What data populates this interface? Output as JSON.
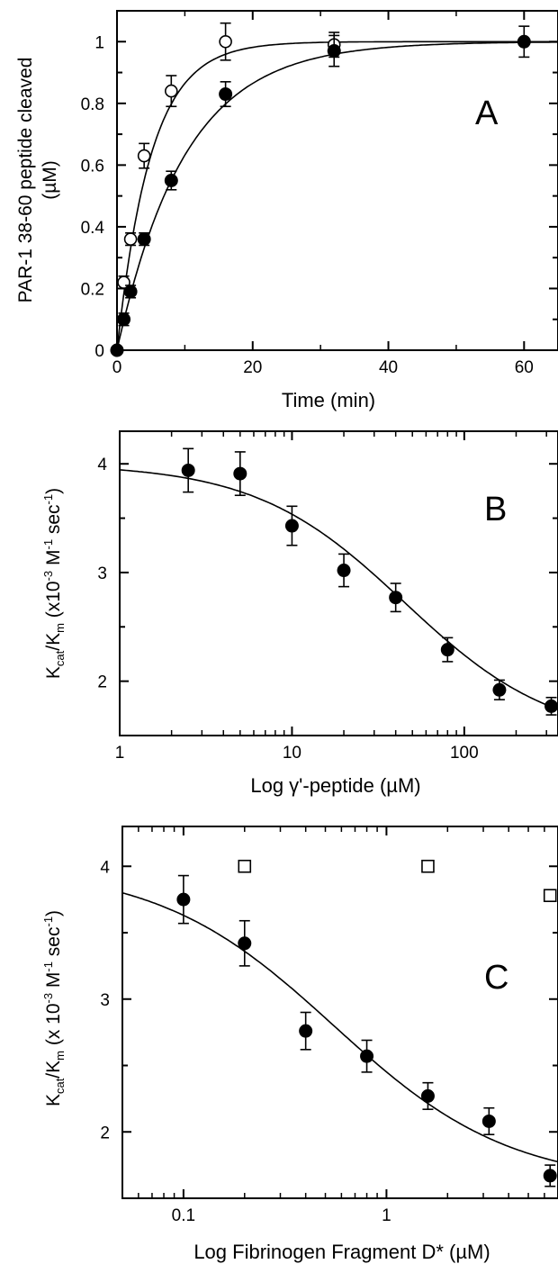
{
  "figure": {
    "colors": {
      "ink": "#000000",
      "background": "#ffffff",
      "open_marker_fill": "#ffffff"
    }
  },
  "chart_data": [
    {
      "panel": "A",
      "type": "scatter",
      "xlabel": "Time (min)",
      "ylabel_line1": "PAR-1 38-60 peptide cleaved",
      "ylabel_line2": "(µM)",
      "xlim": [
        0,
        65
      ],
      "ylim": [
        0,
        1.1
      ],
      "x_scale": "linear",
      "x_ticks": [
        0,
        20,
        40,
        60
      ],
      "x_tick_labels": [
        "0",
        "20",
        "40",
        "60"
      ],
      "y_ticks": [
        0,
        0.2,
        0.4,
        0.6,
        0.8,
        1
      ],
      "y_tick_labels": [
        "0",
        "0.2",
        "0.4",
        "0.6",
        "0.8",
        "1"
      ],
      "series": [
        {
          "marker": "open-circle",
          "x": [
            0,
            1,
            2,
            4,
            8,
            16,
            32
          ],
          "y": [
            0,
            0.22,
            0.36,
            0.63,
            0.84,
            1.0,
            0.99
          ],
          "err": [
            0,
            0.02,
            0.02,
            0.04,
            0.05,
            0.06,
            0.04
          ],
          "fit": {
            "model": "exponential-rise",
            "rate": 0.2
          }
        },
        {
          "marker": "filled-circle",
          "x": [
            0,
            1,
            2,
            4,
            8,
            16,
            32,
            60
          ],
          "y": [
            0,
            0.1,
            0.19,
            0.36,
            0.55,
            0.83,
            0.97,
            1.0
          ],
          "err": [
            0,
            0.02,
            0.02,
            0.02,
            0.03,
            0.04,
            0.05,
            0.05
          ],
          "fit": {
            "model": "exponential-rise",
            "rate": 0.1
          }
        }
      ]
    },
    {
      "panel": "B",
      "type": "scatter",
      "xlabel": "Log γ'-peptide (µM)",
      "ylabel": "Kcat/Km (x10⁻³ M⁻¹ sec⁻¹)",
      "ylabel_k1": "K",
      "ylabel_sub1": "cat",
      "ylabel_slash": "/K",
      "ylabel_sub2": "m",
      "ylabel_rest_a": " (x10",
      "ylabel_sup1": "-3",
      "ylabel_rest_b": " M",
      "ylabel_sup2": "-1",
      "ylabel_rest_c": " sec",
      "ylabel_sup3": "-1",
      "ylabel_rest_d": ")",
      "x_scale": "log",
      "xlim": [
        1,
        350
      ],
      "ylim": [
        1.5,
        4.3
      ],
      "x_ticks": [
        1,
        10,
        100
      ],
      "x_tick_labels": [
        "1",
        "10",
        "100"
      ],
      "y_ticks": [
        2,
        3,
        4
      ],
      "y_tick_labels": [
        "2",
        "3",
        "4"
      ],
      "series": [
        {
          "marker": "filled-circle",
          "x": [
            2.5,
            5,
            10,
            20,
            40,
            80,
            160,
            320
          ],
          "y": [
            3.94,
            3.91,
            3.43,
            3.02,
            2.77,
            2.29,
            1.92,
            1.77
          ],
          "err": [
            0.2,
            0.2,
            0.18,
            0.15,
            0.13,
            0.11,
            0.09,
            0.08
          ],
          "fit": {
            "model": "inhibition",
            "top": 4.0,
            "bottom": 1.45,
            "ic50": 45
          }
        }
      ]
    },
    {
      "panel": "C",
      "type": "scatter",
      "xlabel": "Log Fibrinogen Fragment D* (µM)",
      "ylabel": "Kcat/Km (x 10⁻³ M⁻¹ sec⁻¹)",
      "ylabel_k1": "K",
      "ylabel_sub1": "cat",
      "ylabel_slash": "/K",
      "ylabel_sub2": "m",
      "ylabel_rest_a": " (x 10",
      "ylabel_sup1": "-3",
      "ylabel_rest_b": " M",
      "ylabel_sup2": "-1",
      "ylabel_rest_c": " sec",
      "ylabel_sup3": "-1",
      "ylabel_rest_d": ")",
      "x_scale": "log",
      "xlim": [
        0.05,
        7
      ],
      "ylim": [
        1.5,
        4.3
      ],
      "x_ticks": [
        0.1,
        1
      ],
      "x_tick_labels": [
        "0.1",
        "1"
      ],
      "y_ticks": [
        2,
        3,
        4
      ],
      "y_tick_labels": [
        "2",
        "3",
        "4"
      ],
      "series": [
        {
          "marker": "filled-circle",
          "x": [
            0.1,
            0.2,
            0.4,
            0.8,
            1.6,
            3.2,
            6.4
          ],
          "y": [
            3.75,
            3.42,
            2.76,
            2.57,
            2.27,
            2.08,
            1.67
          ],
          "err": [
            0.18,
            0.17,
            0.14,
            0.12,
            0.1,
            0.1,
            0.08
          ],
          "fit": {
            "model": "inhibition",
            "top": 4.0,
            "bottom": 1.6,
            "ic50": 0.55
          }
        },
        {
          "marker": "open-square",
          "x": [
            0.2,
            1.6,
            6.4
          ],
          "y": [
            4.0,
            4.0,
            3.78
          ],
          "err": [
            0,
            0,
            0
          ]
        }
      ]
    }
  ]
}
